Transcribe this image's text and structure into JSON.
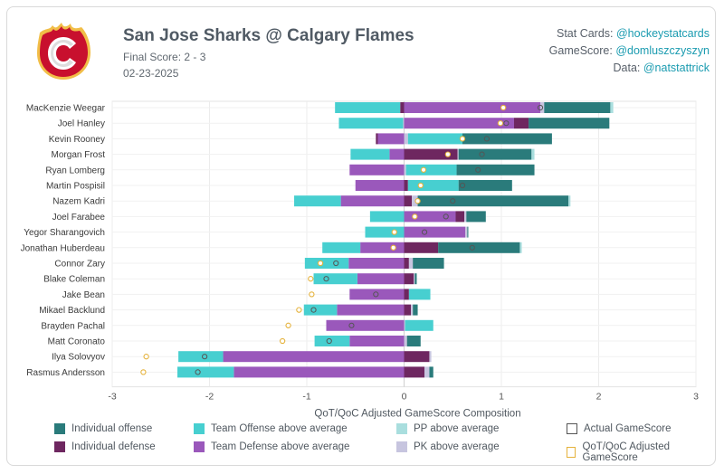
{
  "header": {
    "title": "San Jose Sharks @ Calgary Flames",
    "final_score": "Final Score: 2 - 3",
    "date": "02-23-2025"
  },
  "credits": [
    {
      "label": "Stat Cards: ",
      "handle": "@hockeystatcards"
    },
    {
      "label": "GameScore: ",
      "handle": "@domluszczyszyn"
    },
    {
      "label": "Data: ",
      "handle": "@natstattrick"
    }
  ],
  "colors": {
    "ind_off": "#2a7b7b",
    "ind_def": "#6e2760",
    "team_off": "#47cfd0",
    "team_def": "#9a58bb",
    "pp": "#a9dede",
    "pk": "#c7c5df",
    "actual_marker": "#555555",
    "adjusted_marker": "#e5b23b",
    "logo_red": "#c8102e",
    "logo_yellow": "#f1be48"
  },
  "chart_data": {
    "type": "bar",
    "orientation": "horizontal-stacked-diverging",
    "xlabel": "QoT/QoC Adjusted GameScore Composition",
    "xlim": [
      -3,
      3
    ],
    "xticks": [
      -3,
      -2,
      -1,
      0,
      1,
      2,
      3
    ],
    "grid": true,
    "legend_position": "bottom",
    "legend": [
      {
        "key": "ind_off",
        "label": "Individual offense",
        "kind": "box"
      },
      {
        "key": "team_off",
        "label": "Team Offense above average",
        "kind": "box"
      },
      {
        "key": "pp",
        "label": "PP above average",
        "kind": "box"
      },
      {
        "key": "actual_marker",
        "label": "Actual GameScore",
        "kind": "square"
      },
      {
        "key": "ind_def",
        "label": "Individual defense",
        "kind": "box"
      },
      {
        "key": "team_def",
        "label": "Team Defense above average",
        "kind": "box"
      },
      {
        "key": "pk",
        "label": "PK above average",
        "kind": "box"
      },
      {
        "key": "adjusted_marker",
        "label": "QoT/QoC Adjusted GameScore",
        "kind": "square"
      }
    ],
    "players": [
      {
        "name": "MacKenzie Weegar",
        "ind_off": 0.68,
        "ind_def": -0.04,
        "team_off": -0.67,
        "team_def": 1.4,
        "pp": 0.03,
        "pk": 0.04,
        "actual": 1.4,
        "adjusted": 1.02
      },
      {
        "name": "Joel Hanley",
        "ind_off": 0.83,
        "ind_def": 0.15,
        "team_off": -0.66,
        "team_def": 1.13,
        "pp": 0.0,
        "pk": -0.01,
        "actual": 1.05,
        "adjusted": 0.99
      },
      {
        "name": "Kevin Rooney",
        "ind_off": 0.92,
        "ind_def": -0.02,
        "team_off": 0.56,
        "team_def": -0.27,
        "pp": 0.0,
        "pk": 0.04,
        "actual": 0.85,
        "adjusted": 0.6
      },
      {
        "name": "Morgan Frost",
        "ind_off": 0.75,
        "ind_def": 0.55,
        "team_off": -0.4,
        "team_def": -0.15,
        "pp": 0.03,
        "pk": 0.01,
        "actual": 0.8,
        "adjusted": 0.45
      },
      {
        "name": "Ryan Lomberg",
        "ind_off": 0.8,
        "ind_def": 0.0,
        "team_off": 0.52,
        "team_def": -0.56,
        "pp": 0.0,
        "pk": 0.02,
        "actual": 0.76,
        "adjusted": 0.2
      },
      {
        "name": "Martin Pospisil",
        "ind_off": 0.55,
        "ind_def": 0.04,
        "team_off": 0.52,
        "team_def": -0.5,
        "pp": 0.0,
        "pk": 0.0,
        "actual": 0.6,
        "adjusted": 0.17
      },
      {
        "name": "Nazem Kadri",
        "ind_off": 1.55,
        "ind_def": 0.08,
        "team_off": -0.48,
        "team_def": -0.65,
        "pp": 0.02,
        "pk": 0.06,
        "actual": 0.5,
        "adjusted": 0.14
      },
      {
        "name": "Joel Farabee",
        "ind_off": 0.2,
        "ind_def": 0.09,
        "team_off": -0.35,
        "team_def": 0.53,
        "pp": 0.0,
        "pk": 0.02,
        "actual": 0.43,
        "adjusted": 0.11
      },
      {
        "name": "Yegor Sharangovich",
        "ind_off": 0.01,
        "ind_def": 0.0,
        "team_off": -0.4,
        "team_def": 0.63,
        "pp": 0.0,
        "pk": 0.02,
        "actual": 0.21,
        "adjusted": -0.1
      },
      {
        "name": "Jonathan Huberdeau",
        "ind_off": 0.84,
        "ind_def": 0.35,
        "team_off": -0.39,
        "team_def": -0.45,
        "pp": 0.02,
        "pk": 0.0,
        "actual": 0.7,
        "adjusted": -0.11
      },
      {
        "name": "Connor Zary",
        "ind_off": 0.32,
        "ind_def": 0.05,
        "team_off": -0.45,
        "team_def": -0.57,
        "pp": 0.0,
        "pk": 0.04,
        "actual": -0.7,
        "adjusted": -0.86
      },
      {
        "name": "Blake Coleman",
        "ind_off": 0.02,
        "ind_def": 0.1,
        "team_off": -0.45,
        "team_def": -0.48,
        "pp": 0.0,
        "pk": 0.01,
        "actual": -0.8,
        "adjusted": -0.96
      },
      {
        "name": "Jake Bean",
        "ind_off": 0.0,
        "ind_def": 0.05,
        "team_off": 0.22,
        "team_def": -0.56,
        "pp": 0.0,
        "pk": 0.0,
        "actual": -0.29,
        "adjusted": -0.95
      },
      {
        "name": "Mikael Backlund",
        "ind_off": 0.05,
        "ind_def": 0.07,
        "team_off": -0.34,
        "team_def": -0.69,
        "pp": 0.0,
        "pk": 0.02,
        "actual": -0.93,
        "adjusted": -1.08
      },
      {
        "name": "Brayden Pachal",
        "ind_off": 0.0,
        "ind_def": 0.0,
        "team_off": 0.29,
        "team_def": -0.8,
        "pp": 0.0,
        "pk": 0.01,
        "actual": -0.54,
        "adjusted": -1.19
      },
      {
        "name": "Matt Coronato",
        "ind_off": 0.14,
        "ind_def": 0.0,
        "team_off": -0.36,
        "team_def": -0.56,
        "pp": 0.0,
        "pk": 0.03,
        "actual": -0.77,
        "adjusted": -1.25
      },
      {
        "name": "Ilya Solovyov",
        "ind_off": 0.0,
        "ind_def": 0.26,
        "team_off": -0.46,
        "team_def": -1.86,
        "pp": 0.0,
        "pk": 0.02,
        "actual": -2.05,
        "adjusted": -2.65
      },
      {
        "name": "Rasmus Andersson",
        "ind_off": 0.04,
        "ind_def": 0.21,
        "team_off": -0.58,
        "team_def": -1.75,
        "pp": 0.0,
        "pk": 0.05,
        "actual": -2.12,
        "adjusted": -2.68
      }
    ]
  }
}
